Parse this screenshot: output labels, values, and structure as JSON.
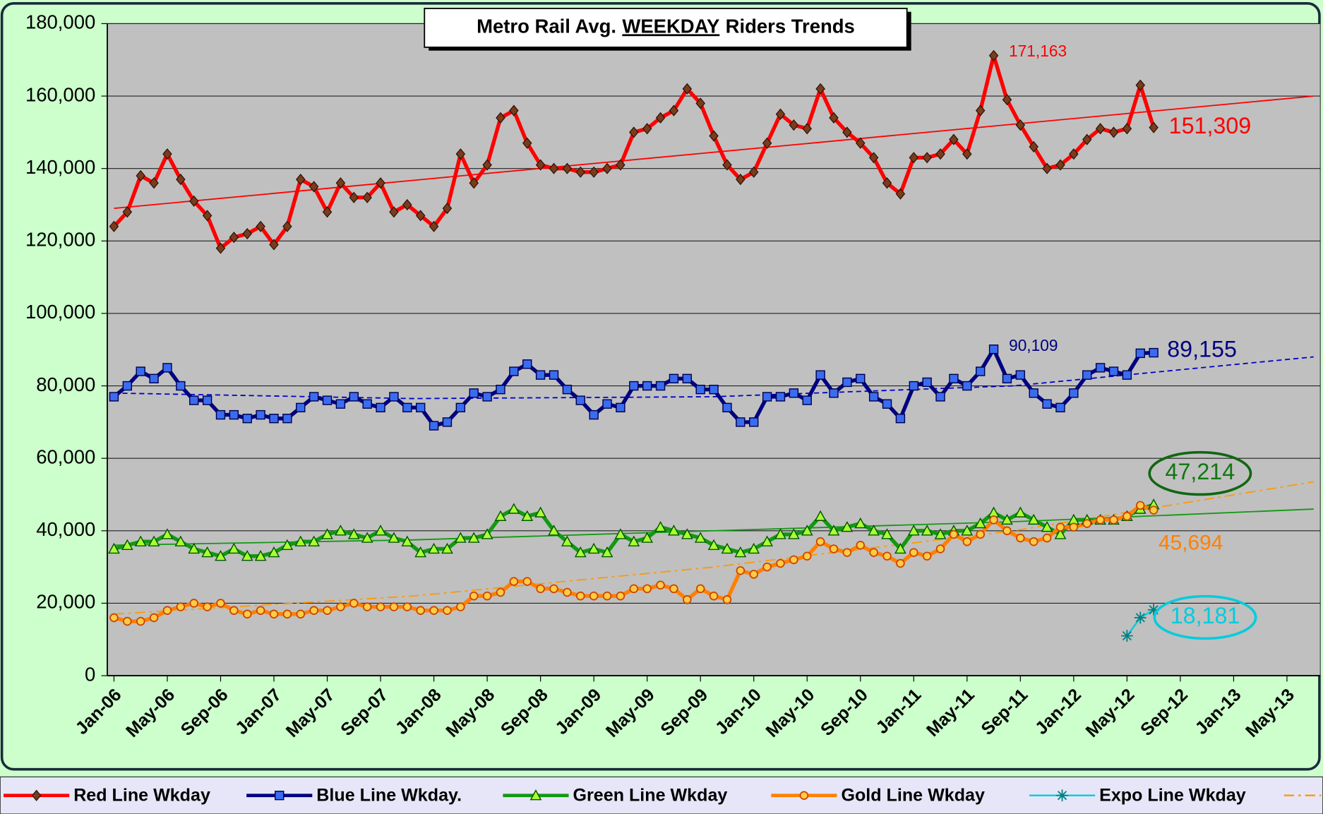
{
  "chart_data": {
    "type": "line",
    "title": [
      "Metro Rail Avg.",
      "WEEKDAY",
      "Riders Trends"
    ],
    "categories": [
      "Jan-06",
      null,
      null,
      null,
      "May-06",
      null,
      null,
      null,
      "Sep-06",
      null,
      null,
      null,
      "Jan-07",
      null,
      null,
      null,
      "May-07",
      null,
      null,
      null,
      "Sep-07",
      null,
      null,
      null,
      "Jan-08",
      null,
      null,
      null,
      "May-08",
      null,
      null,
      null,
      "Sep-08",
      null,
      null,
      null,
      "Jan-09",
      null,
      null,
      null,
      "May-09",
      null,
      null,
      null,
      "Sep-09",
      null,
      null,
      null,
      "Jan-10",
      null,
      null,
      null,
      "May-10",
      null,
      null,
      null,
      "Sep-10",
      null,
      null,
      null,
      "Jan-11",
      null,
      null,
      null,
      "May-11",
      null,
      null,
      null,
      "Sep-11",
      null,
      null,
      null,
      "Jan-12",
      null,
      null,
      null,
      "May-12",
      null,
      null,
      null,
      "Sep-12",
      null,
      null,
      null,
      "Jan-13",
      null,
      null,
      null,
      "May-13",
      null,
      null
    ],
    "ylim": [
      0,
      180000
    ],
    "yticks": [
      0,
      {
        "value": 20000,
        "label": "20,000"
      },
      {
        "value": 40000,
        "label": "40,000"
      },
      {
        "value": 60000,
        "label": "60,000"
      },
      {
        "value": 80000,
        "label": "80,000"
      },
      {
        "value": 100000,
        "label": "100,000"
      },
      {
        "value": 120000,
        "label": "120,000"
      },
      {
        "value": 140000,
        "label": "140,000"
      },
      {
        "value": 160000,
        "label": "160,000"
      },
      {
        "value": 180000,
        "label": "180,000"
      }
    ],
    "grid": true,
    "legend": "bottom",
    "series": [
      {
        "name": "Red Line Wkday",
        "color": "#ff0000",
        "marker": "diamond",
        "values": [
          124000,
          128000,
          138000,
          136000,
          144000,
          137000,
          131000,
          127000,
          118000,
          121000,
          122000,
          124000,
          119000,
          124000,
          137000,
          135000,
          128000,
          136000,
          132000,
          132000,
          136000,
          128000,
          130000,
          127000,
          124000,
          129000,
          144000,
          136000,
          141000,
          154000,
          156000,
          147000,
          141000,
          140000,
          140000,
          139000,
          139000,
          140000,
          141000,
          150000,
          151000,
          154000,
          156000,
          162000,
          158000,
          149000,
          141000,
          137000,
          139000,
          147000,
          155000,
          152000,
          151000,
          162000,
          154000,
          150000,
          147000,
          143000,
          136000,
          133000,
          143000,
          143000,
          144000,
          148000,
          144000,
          156000,
          171163,
          159000,
          152000,
          146000,
          140000,
          141000,
          144000,
          148000,
          151000,
          150000,
          151000,
          163000,
          151309,
          null,
          null,
          null,
          null,
          null,
          null,
          null,
          null,
          null,
          null,
          null,
          null
        ],
        "value_labels": [
          null,
          null,
          null,
          null,
          null,
          null,
          null,
          null,
          null,
          null,
          null,
          null,
          null,
          null,
          null,
          null,
          null,
          null,
          null,
          null,
          null,
          null,
          null,
          null,
          null,
          null,
          null,
          null,
          null,
          null,
          null,
          null,
          null,
          null,
          null,
          null,
          null,
          null,
          null,
          null,
          null,
          null,
          null,
          null,
          null,
          null,
          null,
          null,
          null,
          null,
          null,
          null,
          null,
          null,
          null,
          null,
          null,
          null,
          null,
          null,
          null,
          null,
          null,
          null,
          null,
          null,
          "171,163",
          null,
          null,
          null,
          null,
          null,
          null,
          null,
          null,
          null,
          null,
          null,
          "151,309",
          null,
          null,
          null,
          null,
          null,
          null,
          null,
          null,
          null,
          null,
          null,
          null
        ]
      },
      {
        "name": "Blue Line Wkday.",
        "color": "#000080",
        "marker": "square",
        "values": [
          77000,
          80000,
          84000,
          82000,
          85000,
          80000,
          76000,
          76000,
          72000,
          72000,
          71000,
          72000,
          71000,
          71000,
          74000,
          77000,
          76000,
          75000,
          77000,
          75000,
          74000,
          77000,
          74000,
          74000,
          69000,
          70000,
          74000,
          78000,
          77000,
          79000,
          84000,
          86000,
          83000,
          83000,
          79000,
          76000,
          72000,
          75000,
          74000,
          80000,
          80000,
          80000,
          82000,
          82000,
          79000,
          79000,
          74000,
          70000,
          70000,
          77000,
          77000,
          78000,
          76000,
          83000,
          78000,
          81000,
          82000,
          77000,
          75000,
          71000,
          80000,
          81000,
          77000,
          82000,
          80000,
          84000,
          90109,
          82000,
          83000,
          78000,
          75000,
          74000,
          78000,
          83000,
          85000,
          84000,
          83000,
          89000,
          89155,
          null,
          null,
          null,
          null,
          null,
          null,
          null,
          null,
          null,
          null,
          null,
          null
        ],
        "value_labels": [
          null,
          null,
          null,
          null,
          null,
          null,
          null,
          null,
          null,
          null,
          null,
          null,
          null,
          null,
          null,
          null,
          null,
          null,
          null,
          null,
          null,
          null,
          null,
          null,
          null,
          null,
          null,
          null,
          null,
          null,
          null,
          null,
          null,
          null,
          null,
          null,
          null,
          null,
          null,
          null,
          null,
          null,
          null,
          null,
          null,
          null,
          null,
          null,
          null,
          null,
          null,
          null,
          null,
          null,
          null,
          null,
          null,
          null,
          null,
          null,
          null,
          null,
          null,
          null,
          null,
          null,
          "90,109",
          null,
          null,
          null,
          null,
          null,
          null,
          null,
          null,
          null,
          null,
          null,
          "89,155",
          null,
          null,
          null,
          null,
          null,
          null,
          null,
          null,
          null,
          null,
          null,
          null
        ]
      },
      {
        "name": "Green Line Wkday",
        "color": "#119911",
        "marker": "triangle",
        "label_circle": true,
        "values": [
          35000,
          36000,
          37000,
          37000,
          39000,
          37000,
          35000,
          34000,
          33000,
          35000,
          33000,
          33000,
          34000,
          36000,
          37000,
          37000,
          39000,
          40000,
          39000,
          38000,
          40000,
          38000,
          37000,
          34000,
          35000,
          35000,
          38000,
          38000,
          39000,
          44000,
          46000,
          44000,
          45000,
          40000,
          37000,
          34000,
          35000,
          34000,
          39000,
          37000,
          38000,
          41000,
          40000,
          39000,
          38000,
          36000,
          35000,
          34000,
          35000,
          37000,
          39000,
          39000,
          40000,
          44000,
          40000,
          41000,
          42000,
          40000,
          39000,
          35000,
          40000,
          40000,
          39000,
          40000,
          40000,
          42000,
          45000,
          43000,
          45000,
          43000,
          41000,
          39000,
          43000,
          43000,
          43000,
          43000,
          44000,
          46000,
          47214,
          null,
          null,
          null,
          null,
          null,
          null,
          null,
          null,
          null,
          null,
          null,
          null
        ],
        "value_labels": [
          null,
          null,
          null,
          null,
          null,
          null,
          null,
          null,
          null,
          null,
          null,
          null,
          null,
          null,
          null,
          null,
          null,
          null,
          null,
          null,
          null,
          null,
          null,
          null,
          null,
          null,
          null,
          null,
          null,
          null,
          null,
          null,
          null,
          null,
          null,
          null,
          null,
          null,
          null,
          null,
          null,
          null,
          null,
          null,
          null,
          null,
          null,
          null,
          null,
          null,
          null,
          null,
          null,
          null,
          null,
          null,
          null,
          null,
          null,
          null,
          null,
          null,
          null,
          null,
          null,
          null,
          null,
          null,
          null,
          null,
          null,
          null,
          null,
          null,
          null,
          null,
          null,
          null,
          "47,214",
          null,
          null,
          null,
          null,
          null,
          null,
          null,
          null,
          null,
          null,
          null,
          null
        ]
      },
      {
        "name": "Gold Line Wkday",
        "color": "#ff8000",
        "marker": "circle",
        "values": [
          16000,
          15000,
          15000,
          16000,
          18000,
          19000,
          20000,
          19000,
          20000,
          18000,
          17000,
          18000,
          17000,
          17000,
          17000,
          18000,
          18000,
          19000,
          20000,
          19000,
          19000,
          19000,
          19000,
          18000,
          18000,
          18000,
          19000,
          22000,
          22000,
          23000,
          26000,
          26000,
          24000,
          24000,
          23000,
          22000,
          22000,
          22000,
          22000,
          24000,
          24000,
          25000,
          24000,
          21000,
          24000,
          22000,
          21000,
          29000,
          28000,
          30000,
          31000,
          32000,
          33000,
          37000,
          35000,
          34000,
          36000,
          34000,
          33000,
          31000,
          34000,
          33000,
          35000,
          39000,
          37000,
          39000,
          43000,
          40000,
          38000,
          37000,
          38000,
          41000,
          41000,
          42000,
          43000,
          43000,
          44000,
          47000,
          45694,
          null,
          null,
          null,
          null,
          null,
          null,
          null,
          null,
          null,
          null,
          null,
          null
        ],
        "value_labels": [
          null,
          null,
          null,
          null,
          null,
          null,
          null,
          null,
          null,
          null,
          null,
          null,
          null,
          null,
          null,
          null,
          null,
          null,
          null,
          null,
          null,
          null,
          null,
          null,
          null,
          null,
          null,
          null,
          null,
          null,
          null,
          null,
          null,
          null,
          null,
          null,
          null,
          null,
          null,
          null,
          null,
          null,
          null,
          null,
          null,
          null,
          null,
          null,
          null,
          null,
          null,
          null,
          null,
          null,
          null,
          null,
          null,
          null,
          null,
          null,
          null,
          null,
          null,
          null,
          null,
          null,
          null,
          null,
          null,
          null,
          null,
          null,
          null,
          null,
          null,
          null,
          null,
          null,
          "45,694",
          null,
          null,
          null,
          null,
          null,
          null,
          null,
          null,
          null,
          null,
          null,
          null
        ]
      },
      {
        "name": "Expo Line Wkday",
        "color": "#00ccdd",
        "marker": "asterisk",
        "label_circle": true,
        "values": [
          null,
          null,
          null,
          null,
          null,
          null,
          null,
          null,
          null,
          null,
          null,
          null,
          null,
          null,
          null,
          null,
          null,
          null,
          null,
          null,
          null,
          null,
          null,
          null,
          null,
          null,
          null,
          null,
          null,
          null,
          null,
          null,
          null,
          null,
          null,
          null,
          null,
          null,
          null,
          null,
          null,
          null,
          null,
          null,
          null,
          null,
          null,
          null,
          null,
          null,
          null,
          null,
          null,
          null,
          null,
          null,
          null,
          null,
          null,
          null,
          null,
          null,
          null,
          null,
          null,
          null,
          null,
          null,
          null,
          null,
          null,
          null,
          null,
          null,
          null,
          null,
          11000,
          16000,
          18181,
          null,
          null,
          null,
          null,
          null,
          null,
          null,
          null,
          null,
          null,
          null,
          null
        ],
        "value_labels": [
          null,
          null,
          null,
          null,
          null,
          null,
          null,
          null,
          null,
          null,
          null,
          null,
          null,
          null,
          null,
          null,
          null,
          null,
          null,
          null,
          null,
          null,
          null,
          null,
          null,
          null,
          null,
          null,
          null,
          null,
          null,
          null,
          null,
          null,
          null,
          null,
          null,
          null,
          null,
          null,
          null,
          null,
          null,
          null,
          null,
          null,
          null,
          null,
          null,
          null,
          null,
          null,
          null,
          null,
          null,
          null,
          null,
          null,
          null,
          null,
          null,
          null,
          null,
          null,
          null,
          null,
          null,
          null,
          null,
          null,
          null,
          null,
          null,
          null,
          null,
          null,
          null,
          null,
          "18,181",
          null,
          null,
          null,
          null,
          null,
          null,
          null,
          null,
          null,
          null,
          null,
          null
        ]
      }
    ],
    "trendlines": [
      {
        "color": "#ff0000",
        "dash": "solid",
        "values": [
          129000,
          136750,
          144500,
          152250,
          160000
        ]
      },
      {
        "color": "#0000cc",
        "dash": "dashed",
        "values": [
          78000,
          76500,
          77000,
          80000,
          88000
        ]
      },
      {
        "color": "#119911",
        "dash": "solid",
        "values": [
          36000,
          37500,
          40000,
          42500,
          46000
        ]
      },
      {
        "color": "#ff9900",
        "dash": "dashdot",
        "in_legend": true,
        "values": [
          17000,
          22000,
          30000,
          40000,
          53500
        ]
      }
    ]
  }
}
